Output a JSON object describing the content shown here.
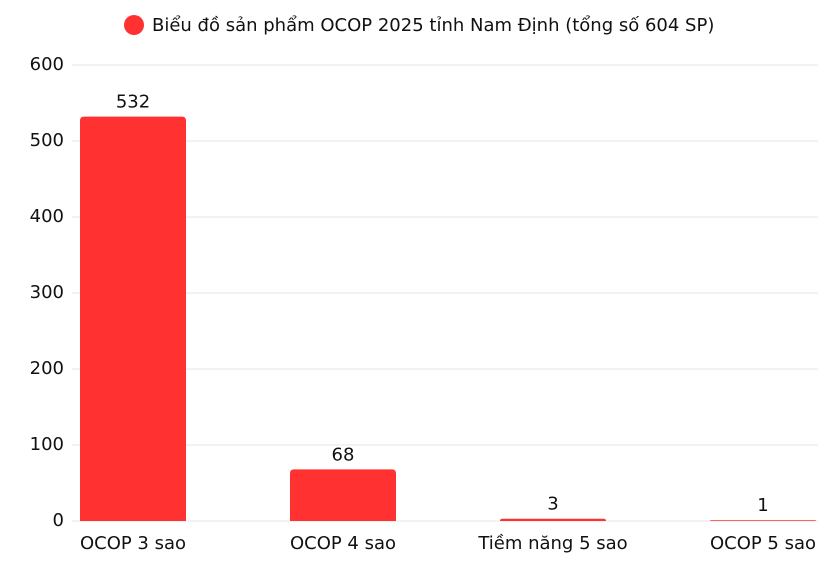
{
  "chart_data": {
    "type": "bar",
    "categories": [
      "OCOP 3 sao",
      "OCOP 4 sao",
      "Tiềm năng 5 sao",
      "OCOP 5 sao"
    ],
    "series": [
      {
        "name": "Biểu đồ sản phẩm OCOP 2025 tỉnh Nam Định (tổng số 604 SP)",
        "color": "#ff3131",
        "values": [
          532,
          68,
          3,
          1
        ]
      }
    ],
    "ylim": [
      0,
      600
    ],
    "yticks": [
      0,
      100,
      200,
      300,
      400,
      500,
      600
    ],
    "grid": true
  }
}
